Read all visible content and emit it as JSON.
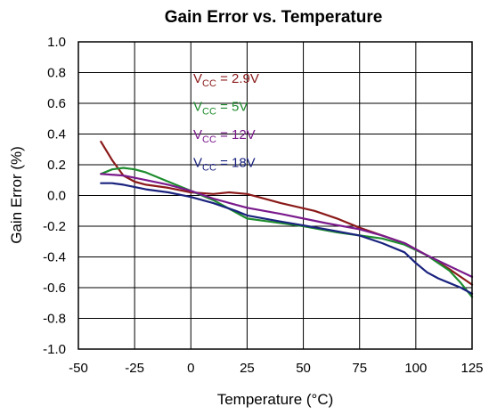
{
  "chart_data": {
    "type": "line",
    "title": "Gain Error vs. Temperature",
    "xlabel": "Temperature (°C)",
    "ylabel": "Gain Error (%)",
    "xlim": [
      -50,
      125
    ],
    "ylim": [
      -1.0,
      1.0
    ],
    "xticks": [
      "-50",
      "-25",
      "0",
      "25",
      "50",
      "75",
      "100",
      "125"
    ],
    "yticks": [
      "1.0",
      "0.8",
      "0.6",
      "0.4",
      "0.2",
      "0.0",
      "-0.2",
      "-0.4",
      "-0.6",
      "-0.8",
      "-1.0"
    ],
    "grid": true,
    "legend_position": "top-center",
    "series": [
      {
        "name_main": "V",
        "name_sub": "CC",
        "name_rest": " = 2.9V",
        "color": "#8B1A1A",
        "x": [
          -40,
          -35,
          -30,
          -25,
          -20,
          -10,
          0,
          10,
          17,
          25,
          40,
          55,
          65,
          75,
          85,
          95,
          105,
          115,
          125
        ],
        "y": [
          0.35,
          0.23,
          0.13,
          0.09,
          0.07,
          0.05,
          0.02,
          0.01,
          0.02,
          0.01,
          -0.05,
          -0.1,
          -0.15,
          -0.21,
          -0.26,
          -0.31,
          -0.39,
          -0.48,
          -0.58
        ]
      },
      {
        "name_main": "V",
        "name_sub": "CC",
        "name_rest": " = 5V",
        "color": "#1E8C2E",
        "x": [
          -40,
          -35,
          -30,
          -25,
          -20,
          -10,
          0,
          10,
          20,
          25,
          35,
          50,
          65,
          75,
          85,
          95,
          105,
          115,
          120,
          125
        ],
        "y": [
          0.14,
          0.17,
          0.18,
          0.17,
          0.15,
          0.09,
          0.03,
          -0.03,
          -0.11,
          -0.15,
          -0.17,
          -0.2,
          -0.24,
          -0.26,
          -0.28,
          -0.32,
          -0.39,
          -0.49,
          -0.57,
          -0.66
        ]
      },
      {
        "name_main": "V",
        "name_sub": "CC",
        "name_rest": " = 12V",
        "color": "#7A1A8C",
        "x": [
          -40,
          -30,
          -20,
          -10,
          0,
          10,
          20,
          25,
          40,
          60,
          75,
          85,
          95,
          105,
          115,
          125
        ],
        "y": [
          0.14,
          0.13,
          0.1,
          0.07,
          0.03,
          -0.02,
          -0.06,
          -0.08,
          -0.12,
          -0.18,
          -0.22,
          -0.26,
          -0.31,
          -0.39,
          -0.46,
          -0.53
        ]
      },
      {
        "name_main": "V",
        "name_sub": "CC",
        "name_rest": " = 18V",
        "color": "#1A237E",
        "x": [
          -40,
          -35,
          -30,
          -20,
          -10,
          0,
          10,
          20,
          25,
          40,
          60,
          75,
          85,
          95,
          100,
          105,
          110,
          115,
          120,
          125
        ],
        "y": [
          0.08,
          0.08,
          0.07,
          0.04,
          0.02,
          -0.01,
          -0.05,
          -0.1,
          -0.13,
          -0.17,
          -0.22,
          -0.26,
          -0.31,
          -0.37,
          -0.44,
          -0.5,
          -0.54,
          -0.57,
          -0.6,
          -0.64
        ]
      }
    ]
  }
}
